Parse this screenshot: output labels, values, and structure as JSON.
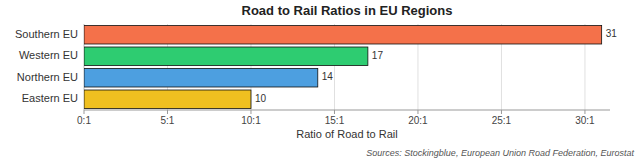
{
  "chart_data": {
    "type": "bar",
    "orientation": "horizontal",
    "title": "Road to Rail Ratios in EU Regions",
    "categories": [
      "Southern EU",
      "Western EU",
      "Northern EU",
      "Eastern EU"
    ],
    "values": [
      31,
      17,
      14,
      10
    ],
    "colors": [
      "#F4714A",
      "#2ECC71",
      "#4D9FE0",
      "#F0C020"
    ],
    "xlabel": "Ratio of Road to Rail",
    "xlim": [
      0,
      31.5
    ],
    "xticks": [
      {
        "value": 0,
        "label": "0:1"
      },
      {
        "value": 5,
        "label": "5:1"
      },
      {
        "value": 10,
        "label": "10:1"
      },
      {
        "value": 15,
        "label": "15:1"
      },
      {
        "value": 20,
        "label": "20:1"
      },
      {
        "value": 25,
        "label": "25:1"
      },
      {
        "value": 30,
        "label": "30:1"
      }
    ],
    "grid": true,
    "data_labels": true,
    "annotations": [
      "Sources: Stockingblue, European Union Road Federation, Eurostat"
    ]
  }
}
